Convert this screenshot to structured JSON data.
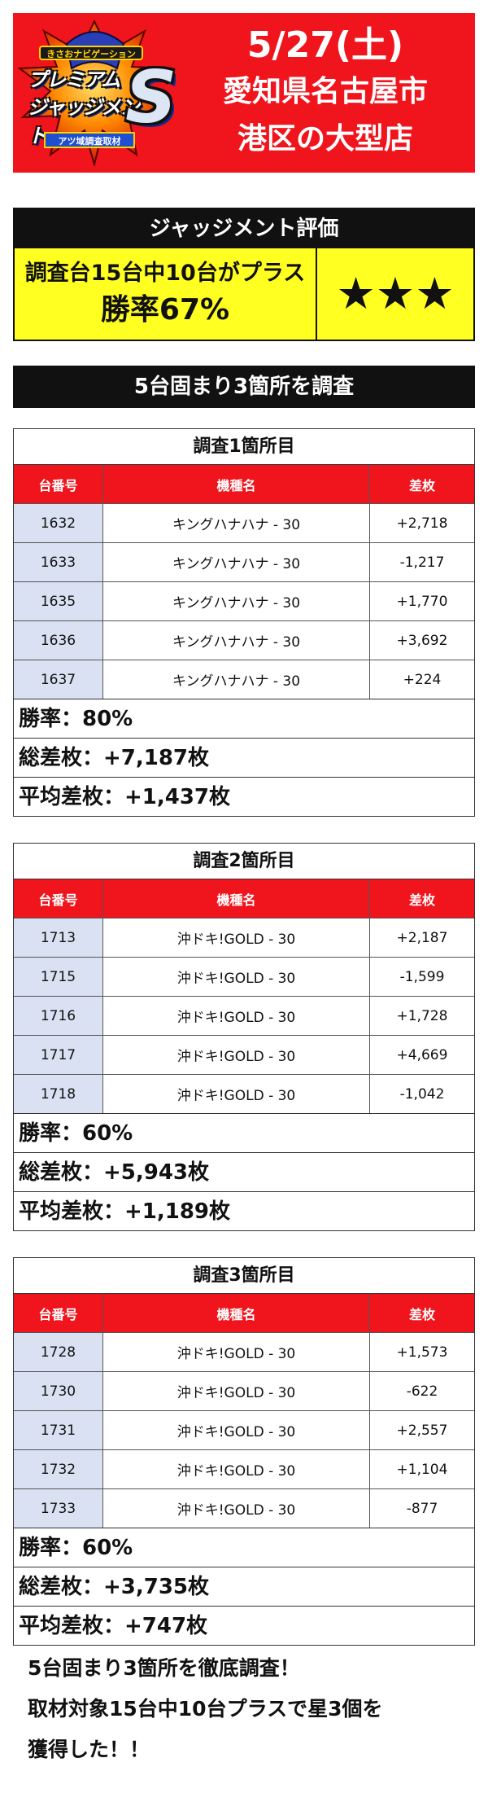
{
  "header": {
    "logo": {
      "small_text": "きさおナビゲーション",
      "line1": "プレミアム",
      "line2": "ジャッジメント",
      "s_letter": "S",
      "sub_text": "アツ域調査取材"
    },
    "date": "5/27(土)",
    "location_line1": "愛知県名古屋市",
    "location_line2": "港区の大型店"
  },
  "judgment": {
    "title": "ジャッジメント評価",
    "line1": "調査台15台中10台がプラス",
    "line2": "勝率67%",
    "stars": [
      "★",
      "★",
      "★"
    ]
  },
  "section_title": "5台固まり3箇所を調査",
  "surveys": [
    {
      "title": "調査1箇所目",
      "headers": [
        "台番号",
        "機種名",
        "差枚"
      ],
      "rows": [
        {
          "no": "1632",
          "machine": "キングハナハナ - 30",
          "diff": "+2,718"
        },
        {
          "no": "1633",
          "machine": "キングハナハナ - 30",
          "diff": "-1,217"
        },
        {
          "no": "1635",
          "machine": "キングハナハナ - 30",
          "diff": "+1,770"
        },
        {
          "no": "1636",
          "machine": "キングハナハナ - 30",
          "diff": "+3,692"
        },
        {
          "no": "1637",
          "machine": "キングハナハナ - 30",
          "diff": "+224"
        }
      ],
      "win_rate": "勝率：80%",
      "total": "総差枚：+7,187枚",
      "average": "平均差枚：+1,437枚"
    },
    {
      "title": "調査2箇所目",
      "headers": [
        "台番号",
        "機種名",
        "差枚"
      ],
      "rows": [
        {
          "no": "1713",
          "machine": "沖ドキ!GOLD - 30",
          "diff": "+2,187"
        },
        {
          "no": "1715",
          "machine": "沖ドキ!GOLD - 30",
          "diff": "-1,599"
        },
        {
          "no": "1716",
          "machine": "沖ドキ!GOLD - 30",
          "diff": "+1,728"
        },
        {
          "no": "1717",
          "machine": "沖ドキ!GOLD - 30",
          "diff": "+4,669"
        },
        {
          "no": "1718",
          "machine": "沖ドキ!GOLD - 30",
          "diff": "-1,042"
        }
      ],
      "win_rate": "勝率：60%",
      "total": "総差枚：+5,943枚",
      "average": "平均差枚：+1,189枚"
    },
    {
      "title": "調査3箇所目",
      "headers": [
        "台番号",
        "機種名",
        "差枚"
      ],
      "rows": [
        {
          "no": "1728",
          "machine": "沖ドキ!GOLD - 30",
          "diff": "+1,573"
        },
        {
          "no": "1730",
          "machine": "沖ドキ!GOLD - 30",
          "diff": "-622"
        },
        {
          "no": "1731",
          "machine": "沖ドキ!GOLD - 30",
          "diff": "+2,557"
        },
        {
          "no": "1732",
          "machine": "沖ドキ!GOLD - 30",
          "diff": "+1,104"
        },
        {
          "no": "1733",
          "machine": "沖ドキ!GOLD - 30",
          "diff": "-877"
        }
      ],
      "win_rate": "勝率：60%",
      "total": "総差枚：+3,735枚",
      "average": "平均差枚：+747枚"
    }
  ],
  "footer": {
    "line1": "5台固まり3箇所を徹底調査！",
    "line2": "取材対象15台中10台プラスで星3個を",
    "line3": "獲得した！！"
  },
  "colors": {
    "accent_red": "#f0141c",
    "highlight_yellow": "#ffff22",
    "cell_blue": "#d9e1f2",
    "dark": "#111111"
  }
}
